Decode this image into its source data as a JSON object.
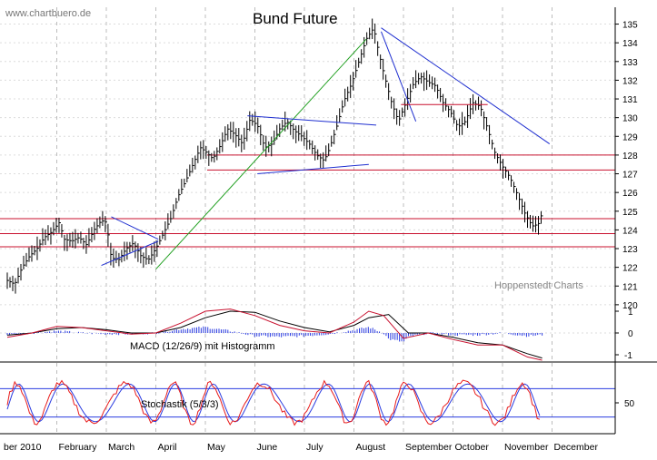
{
  "chart_data": [
    {
      "type": "line",
      "title": "Bund Future",
      "watermark": "www.chartbuero.de",
      "credit": "Hoppenstedt Charts",
      "x_labels": [
        "ber 2010",
        "February",
        "March",
        "April",
        "May",
        "June",
        "July",
        "August",
        "September",
        "October",
        "November",
        "December"
      ],
      "y_ticks": [
        120,
        121,
        122,
        123,
        124,
        125,
        126,
        127,
        128,
        129,
        130,
        131,
        132,
        133,
        134,
        135
      ],
      "ylim": [
        119.8,
        135.9
      ],
      "horizontal_lines": [
        128.0,
        127.2,
        124.6,
        123.8,
        123.1
      ],
      "trendlines": [
        {
          "color": "#1f2fd0",
          "from": [
            2.1,
            124.7
          ],
          "to": [
            3.05,
            123.5
          ]
        },
        {
          "color": "#1f2fd0",
          "from": [
            1.9,
            122.1
          ],
          "to": [
            3.05,
            123.4
          ]
        },
        {
          "color": "#22a022",
          "from": [
            3.0,
            121.9
          ],
          "to": [
            7.25,
            134.2
          ]
        },
        {
          "color": "#1f2fd0",
          "from": [
            4.85,
            130.1
          ],
          "to": [
            7.45,
            129.6
          ]
        },
        {
          "color": "#1f2fd0",
          "from": [
            5.05,
            127.0
          ],
          "to": [
            7.3,
            127.5
          ]
        },
        {
          "color": "#1f2fd0",
          "from": [
            7.55,
            134.8
          ],
          "to": [
            10.95,
            128.6
          ]
        },
        {
          "color": "#1f2fd0",
          "from": [
            7.55,
            134.6
          ],
          "to": [
            8.25,
            129.8
          ]
        },
        {
          "color": "#c8102e",
          "from": [
            7.95,
            130.7
          ],
          "to": [
            9.7,
            130.7
          ]
        }
      ],
      "series": [
        {
          "name": "price",
          "values": [
            [
              0,
              121.3
            ],
            [
              0.15,
              121.1
            ],
            [
              0.3,
              122.0
            ],
            [
              0.45,
              122.6
            ],
            [
              0.6,
              123.0
            ],
            [
              0.75,
              123.6
            ],
            [
              0.9,
              123.9
            ],
            [
              1.05,
              124.4
            ],
            [
              1.15,
              123.5
            ],
            [
              1.3,
              123.4
            ],
            [
              1.45,
              123.6
            ],
            [
              1.6,
              123.2
            ],
            [
              1.75,
              124.0
            ],
            [
              1.9,
              124.5
            ],
            [
              2.0,
              124.4
            ],
            [
              2.1,
              122.5
            ],
            [
              2.25,
              122.4
            ],
            [
              2.4,
              123.0
            ],
            [
              2.55,
              123.3
            ],
            [
              2.7,
              122.6
            ],
            [
              2.85,
              122.4
            ],
            [
              3.0,
              123.0
            ],
            [
              3.15,
              123.8
            ],
            [
              3.3,
              124.6
            ],
            [
              3.45,
              125.8
            ],
            [
              3.6,
              126.6
            ],
            [
              3.75,
              127.5
            ],
            [
              3.9,
              128.4
            ],
            [
              4.0,
              128.2
            ],
            [
              4.15,
              127.8
            ],
            [
              4.3,
              128.5
            ],
            [
              4.45,
              129.4
            ],
            [
              4.6,
              129.1
            ],
            [
              4.75,
              128.6
            ],
            [
              4.9,
              129.9
            ],
            [
              5.05,
              129.6
            ],
            [
              5.2,
              128.4
            ],
            [
              5.35,
              128.6
            ],
            [
              5.5,
              129.4
            ],
            [
              5.65,
              129.8
            ],
            [
              5.8,
              129.3
            ],
            [
              5.95,
              129.0
            ],
            [
              6.1,
              128.6
            ],
            [
              6.25,
              128.0
            ],
            [
              6.4,
              127.7
            ],
            [
              6.5,
              128.3
            ],
            [
              6.65,
              129.5
            ],
            [
              6.8,
              130.9
            ],
            [
              6.95,
              131.8
            ],
            [
              7.1,
              133.0
            ],
            [
              7.25,
              134.2
            ],
            [
              7.4,
              134.8
            ],
            [
              7.5,
              133.5
            ],
            [
              7.6,
              132.4
            ],
            [
              7.75,
              130.9
            ],
            [
              7.9,
              129.8
            ],
            [
              8.05,
              130.8
            ],
            [
              8.2,
              131.8
            ],
            [
              8.35,
              132.2
            ],
            [
              8.5,
              131.9
            ],
            [
              8.65,
              131.7
            ],
            [
              8.8,
              130.8
            ],
            [
              8.95,
              130.3
            ],
            [
              9.1,
              129.5
            ],
            [
              9.25,
              129.8
            ],
            [
              9.4,
              130.8
            ],
            [
              9.55,
              130.6
            ],
            [
              9.7,
              129.4
            ],
            [
              9.85,
              128.1
            ],
            [
              10.0,
              127.4
            ],
            [
              10.15,
              126.8
            ],
            [
              10.3,
              125.9
            ],
            [
              10.45,
              124.9
            ],
            [
              10.6,
              124.2
            ],
            [
              10.72,
              124.3
            ],
            [
              10.8,
              124.9
            ]
          ]
        },
        {
          "name": "MACD",
          "values": [
            [
              0,
              -0.2
            ],
            [
              0.5,
              0.0
            ],
            [
              1.0,
              0.3
            ],
            [
              1.5,
              0.25
            ],
            [
              2.0,
              0.1
            ],
            [
              2.5,
              -0.05
            ],
            [
              3.0,
              0.0
            ],
            [
              3.5,
              0.45
            ],
            [
              4.0,
              1.0
            ],
            [
              4.5,
              1.1
            ],
            [
              5.0,
              0.8
            ],
            [
              5.5,
              0.35
            ],
            [
              6.0,
              0.1
            ],
            [
              6.5,
              0.0
            ],
            [
              7.0,
              0.5
            ],
            [
              7.3,
              1.0
            ],
            [
              7.6,
              0.8
            ],
            [
              8.0,
              -0.25
            ],
            [
              8.5,
              0.0
            ],
            [
              9.0,
              -0.3
            ],
            [
              9.5,
              -0.55
            ],
            [
              10.0,
              -0.55
            ],
            [
              10.5,
              -1.1
            ],
            [
              10.8,
              -1.25
            ]
          ]
        },
        {
          "name": "Signal",
          "values": [
            [
              0,
              -0.1
            ],
            [
              0.5,
              0.0
            ],
            [
              1.0,
              0.2
            ],
            [
              1.5,
              0.25
            ],
            [
              2.0,
              0.15
            ],
            [
              2.5,
              0.0
            ],
            [
              3.0,
              0.0
            ],
            [
              3.5,
              0.25
            ],
            [
              4.0,
              0.7
            ],
            [
              4.5,
              1.0
            ],
            [
              5.0,
              0.95
            ],
            [
              5.5,
              0.55
            ],
            [
              6.0,
              0.25
            ],
            [
              6.5,
              0.05
            ],
            [
              7.0,
              0.35
            ],
            [
              7.3,
              0.7
            ],
            [
              7.7,
              0.85
            ],
            [
              8.1,
              0.0
            ],
            [
              8.5,
              0.0
            ],
            [
              9.0,
              -0.2
            ],
            [
              9.5,
              -0.45
            ],
            [
              10.0,
              -0.55
            ],
            [
              10.5,
              -0.95
            ],
            [
              10.8,
              -1.15
            ]
          ]
        }
      ],
      "macd_label": "MACD (12/26/9) mit Histogramm",
      "macd_ticks": [
        1,
        0,
        -1
      ],
      "stoch_label": "Stochastik (5/3/3)",
      "stoch_ticks": [
        50
      ]
    }
  ],
  "colors": {
    "price": "#000000",
    "macd": "#c8102e",
    "signal": "#000000",
    "hist": "#2a3be0",
    "stoch_k": "#e81c1c",
    "stoch_d": "#2a3be0",
    "hline": "#c8102e",
    "grid": "#bdbdbd"
  }
}
